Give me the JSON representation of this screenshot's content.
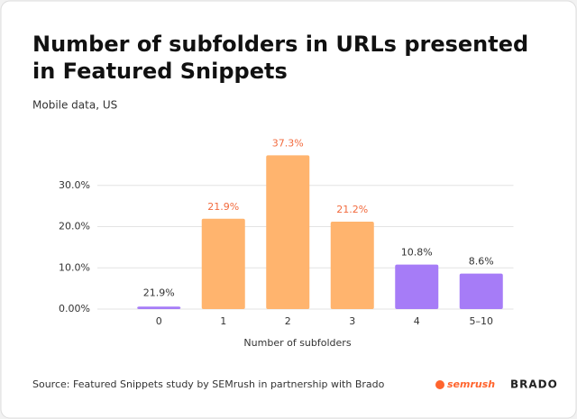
{
  "chart_data": {
    "type": "bar",
    "title": [
      "Number of subfolders in URLs presented",
      "in Featured Snippets"
    ],
    "subtitle": "Mobile data, US",
    "x_label": "Number of subfolders",
    "categories": [
      "0",
      "1",
      "2",
      "3",
      "4",
      "5–10"
    ],
    "values": [
      0.6,
      21.9,
      37.3,
      21.2,
      10.8,
      8.6
    ],
    "value_labels": [
      null,
      "21.9%",
      "37.3%",
      "21.2%",
      "10.8%",
      "8.6%"
    ],
    "annotation": "21.9%",
    "colors": [
      "#a67cf7",
      "#ffb46e",
      "#ffb46e",
      "#ffb46e",
      "#a67cf7",
      "#a67cf7"
    ],
    "ylim": [
      0,
      40
    ],
    "yticks": [
      {
        "value": 0,
        "label": "0.00%"
      },
      {
        "value": 10,
        "label": "10.0%"
      },
      {
        "value": 20,
        "label": "20.0%"
      },
      {
        "value": 30,
        "label": "30.0%"
      }
    ],
    "grid": true,
    "source": "Source: Featured Snippets study by SEMrush in partnership with Brado",
    "logos": [
      "semrush",
      "BRADO"
    ]
  }
}
